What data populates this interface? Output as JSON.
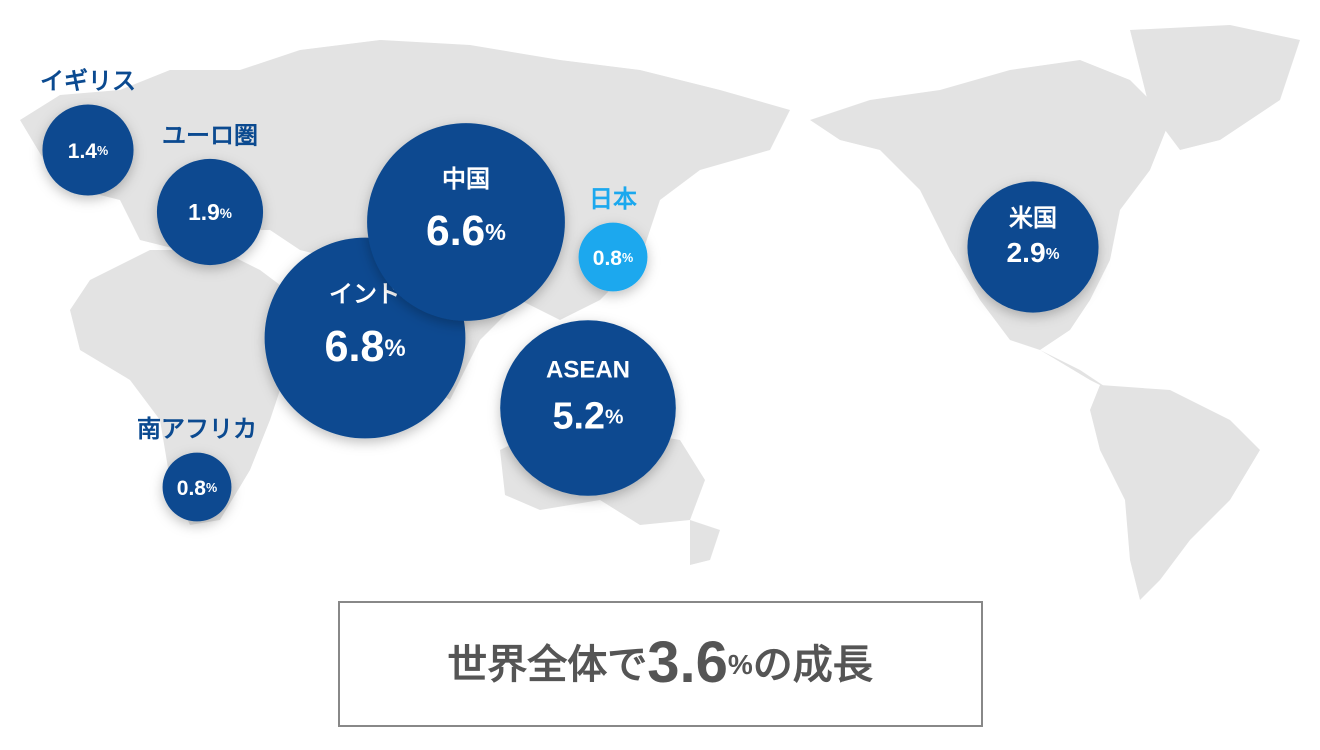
{
  "regions": [
    {
      "name": "イギリス",
      "value": 1.4,
      "unit": "%",
      "color": "#0b4a90"
    },
    {
      "name": "ユーロ圏",
      "value": 1.9,
      "unit": "%",
      "color": "#0b4a90"
    },
    {
      "name": "インド",
      "value": 6.8,
      "unit": "%",
      "color": "#0b4a90"
    },
    {
      "name": "中国",
      "value": 6.6,
      "unit": "%",
      "color": "#0b4a90"
    },
    {
      "name": "日本",
      "value": 0.8,
      "unit": "%",
      "color": "#1ba8ee"
    },
    {
      "name": "ASEAN",
      "value": 5.2,
      "unit": "%",
      "color": "#0b4a90"
    },
    {
      "name": "南アフリカ",
      "value": 0.8,
      "unit": "%",
      "color": "#0b4a90"
    },
    {
      "name": "米国",
      "value": 2.9,
      "unit": "%",
      "color": "#0b4a90"
    }
  ],
  "summary": {
    "prefix": "世界全体で",
    "value": 3.6,
    "unit": "%",
    "suffix": "の成長"
  }
}
